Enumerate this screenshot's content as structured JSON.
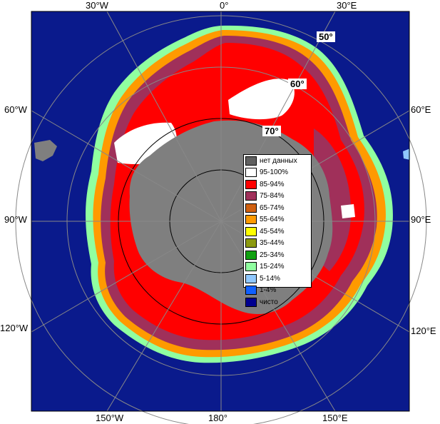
{
  "map": {
    "longitude_labels_top": [
      "30°W",
      "0°",
      "30°E"
    ],
    "longitude_labels_left": [
      "60°W",
      "90°W",
      "120°W"
    ],
    "longitude_labels_right": [
      "60°E",
      "90°E",
      "120°E"
    ],
    "longitude_labels_bottom": [
      "150°W",
      "180°",
      "150°E"
    ],
    "latitude_labels": [
      "50°",
      "60°",
      "70°"
    ],
    "colors": {
      "ocean": "#0a1a8c",
      "land": "#7f7f7f",
      "ice_95_100": "#ffffff",
      "ice_85_94": "#ff0000",
      "ice_75_84": "#a0305a",
      "ice_65_74": "#d06010",
      "ice_55_64": "#ff9a00",
      "ice_45_54": "#ffff00",
      "ice_35_44": "#8c9a10",
      "ice_25_34": "#10a010",
      "ice_15_24": "#90ffa0",
      "ice_5_14": "#90c8ff",
      "ice_1_4": "#1060ff",
      "clear": "#000090",
      "no_data": "#606060"
    }
  },
  "legend": {
    "items": [
      {
        "label": "нет данных",
        "color": "#606060"
      },
      {
        "label": "95-100%",
        "color": "#ffffff"
      },
      {
        "label": "85-94%",
        "color": "#ff0000"
      },
      {
        "label": "75-84%",
        "color": "#a0305a"
      },
      {
        "label": "65-74%",
        "color": "#d06010"
      },
      {
        "label": "55-64%",
        "color": "#ff9a00"
      },
      {
        "label": "45-54%",
        "color": "#ffff00"
      },
      {
        "label": "35-44%",
        "color": "#8c9a10"
      },
      {
        "label": "25-34%",
        "color": "#10a010"
      },
      {
        "label": "15-24%",
        "color": "#90ffa0"
      },
      {
        "label": "5-14%",
        "color": "#90c8ff"
      },
      {
        "label": "1-4%",
        "color": "#1060ff"
      },
      {
        "label": "чисто",
        "color": "#000090"
      }
    ]
  }
}
